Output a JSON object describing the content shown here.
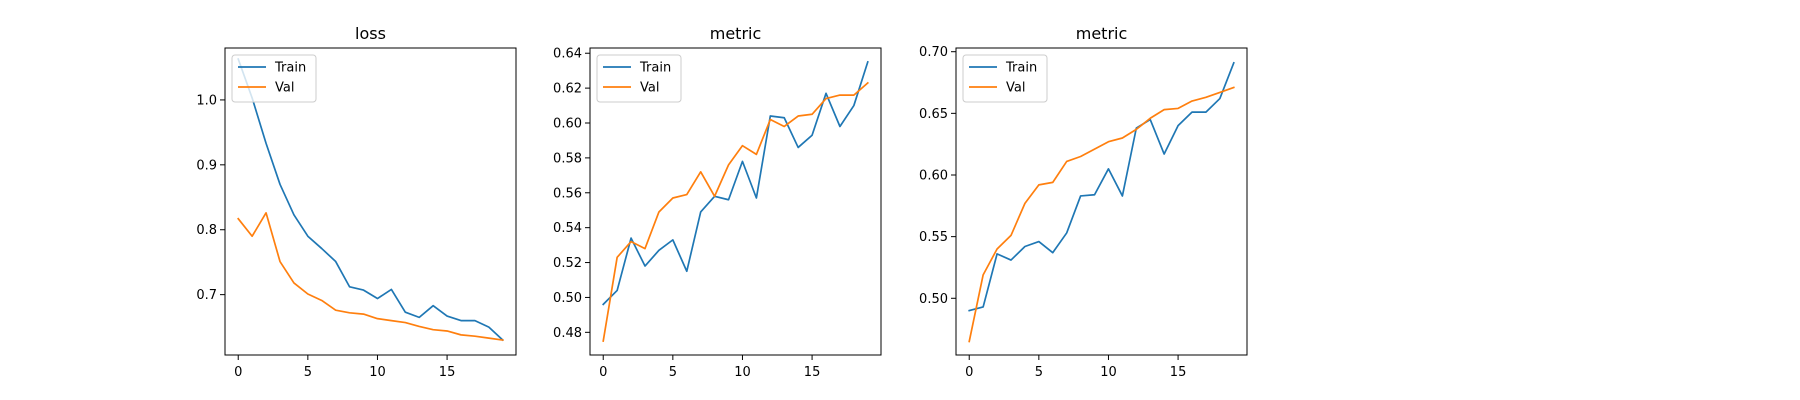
{
  "colors": {
    "train": "#1f77b4",
    "val": "#ff7f0e",
    "axis": "#000000",
    "legend_border": "#cccccc"
  },
  "chart_data": [
    {
      "type": "line",
      "title": "loss",
      "xlabel": "",
      "ylabel": "",
      "grid": false,
      "legend": "top-left",
      "xlim": [
        -0.95,
        19.95
      ],
      "ylim": [
        0.607,
        1.08
      ],
      "xticks": [
        0,
        5,
        10,
        15
      ],
      "yticks": [
        0.7,
        0.8,
        0.9,
        1.0
      ],
      "ytick_labels": [
        "0.7",
        "0.8",
        "0.9",
        "1.0"
      ],
      "x": [
        0,
        1,
        2,
        3,
        4,
        5,
        6,
        7,
        8,
        9,
        10,
        11,
        12,
        13,
        14,
        15,
        16,
        17,
        18,
        19
      ],
      "series": [
        {
          "name": "Train",
          "color_key": "train",
          "values": [
            1.063,
            1.003,
            0.933,
            0.87,
            0.823,
            0.79,
            0.771,
            0.751,
            0.712,
            0.707,
            0.694,
            0.708,
            0.673,
            0.665,
            0.683,
            0.667,
            0.66,
            0.66,
            0.65,
            0.63
          ]
        },
        {
          "name": "Val",
          "color_key": "val",
          "values": [
            0.817,
            0.79,
            0.826,
            0.751,
            0.718,
            0.701,
            0.691,
            0.676,
            0.672,
            0.67,
            0.663,
            0.66,
            0.657,
            0.651,
            0.646,
            0.644,
            0.638,
            0.636,
            0.633,
            0.63
          ]
        }
      ]
    },
    {
      "type": "line",
      "title": "metric",
      "xlabel": "",
      "ylabel": "",
      "grid": false,
      "legend": "top-left",
      "xlim": [
        -0.95,
        19.95
      ],
      "ylim": [
        0.467,
        0.643
      ],
      "xticks": [
        0,
        5,
        10,
        15
      ],
      "yticks": [
        0.48,
        0.5,
        0.52,
        0.54,
        0.56,
        0.58,
        0.6,
        0.62,
        0.64
      ],
      "ytick_labels": [
        "0.48",
        "0.50",
        "0.52",
        "0.54",
        "0.56",
        "0.58",
        "0.60",
        "0.62",
        "0.64"
      ],
      "x": [
        0,
        1,
        2,
        3,
        4,
        5,
        6,
        7,
        8,
        9,
        10,
        11,
        12,
        13,
        14,
        15,
        16,
        17,
        18,
        19
      ],
      "series": [
        {
          "name": "Train",
          "color_key": "train",
          "values": [
            0.496,
            0.504,
            0.534,
            0.518,
            0.527,
            0.533,
            0.515,
            0.549,
            0.558,
            0.556,
            0.578,
            0.557,
            0.604,
            0.603,
            0.586,
            0.593,
            0.617,
            0.598,
            0.61,
            0.635
          ]
        },
        {
          "name": "Val",
          "color_key": "val",
          "values": [
            0.475,
            0.523,
            0.532,
            0.528,
            0.549,
            0.557,
            0.559,
            0.572,
            0.558,
            0.576,
            0.587,
            0.582,
            0.602,
            0.598,
            0.604,
            0.605,
            0.614,
            0.616,
            0.616,
            0.623
          ]
        }
      ]
    },
    {
      "type": "line",
      "title": "metric",
      "xlabel": "",
      "ylabel": "",
      "grid": false,
      "legend": "top-left",
      "xlim": [
        -0.95,
        19.95
      ],
      "ylim": [
        0.454,
        0.703
      ],
      "xticks": [
        0,
        5,
        10,
        15
      ],
      "yticks": [
        0.5,
        0.55,
        0.6,
        0.65,
        0.7
      ],
      "ytick_labels": [
        "0.50",
        "0.55",
        "0.60",
        "0.65",
        "0.70"
      ],
      "x": [
        0,
        1,
        2,
        3,
        4,
        5,
        6,
        7,
        8,
        9,
        10,
        11,
        12,
        13,
        14,
        15,
        16,
        17,
        18,
        19
      ],
      "series": [
        {
          "name": "Train",
          "color_key": "train",
          "values": [
            0.49,
            0.493,
            0.536,
            0.531,
            0.542,
            0.546,
            0.537,
            0.553,
            0.583,
            0.584,
            0.605,
            0.583,
            0.638,
            0.645,
            0.617,
            0.64,
            0.651,
            0.651,
            0.662,
            0.691
          ]
        },
        {
          "name": "Val",
          "color_key": "val",
          "values": [
            0.465,
            0.519,
            0.54,
            0.551,
            0.577,
            0.592,
            0.594,
            0.611,
            0.615,
            0.621,
            0.627,
            0.63,
            0.637,
            0.646,
            0.653,
            0.654,
            0.66,
            0.663,
            0.667,
            0.671
          ]
        }
      ]
    }
  ]
}
